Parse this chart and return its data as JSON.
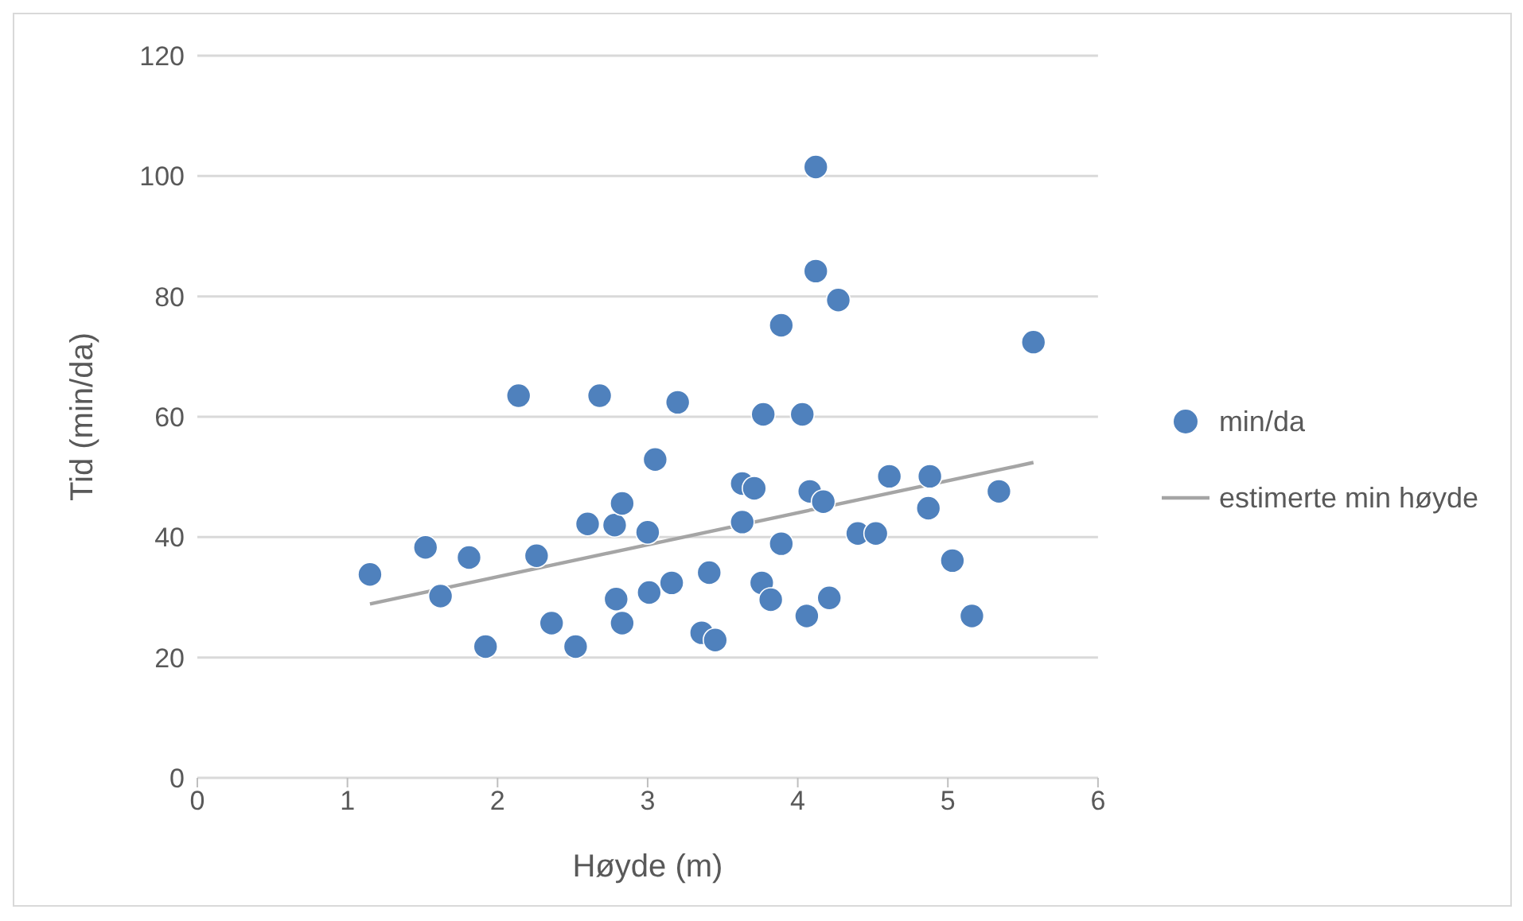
{
  "chart_data": {
    "type": "scatter",
    "xlabel": "Høyde (m)",
    "ylabel": "Tid (min/da)",
    "xlim": [
      0,
      6
    ],
    "xticks": [
      0,
      1,
      2,
      3,
      4,
      5,
      6
    ],
    "ylim": [
      0,
      120
    ],
    "yticks": [
      0,
      20,
      40,
      60,
      80,
      100,
      120
    ],
    "grid": "y",
    "legend": "right",
    "marker": "circle",
    "series": [
      {
        "name": "min/da",
        "color": "#4f81bd",
        "x": [
          1.15,
          1.52,
          1.62,
          1.81,
          1.92,
          2.14,
          2.26,
          2.36,
          2.52,
          2.6,
          2.68,
          2.78,
          2.79,
          2.83,
          2.83,
          3.0,
          3.01,
          3.05,
          3.16,
          3.2,
          3.36,
          3.41,
          3.45,
          3.63,
          3.71,
          3.63,
          3.77,
          3.76,
          3.82,
          3.89,
          3.89,
          4.03,
          4.06,
          4.08,
          4.12,
          4.12,
          4.17,
          4.21,
          4.27,
          4.4,
          4.52,
          4.61,
          4.87,
          4.88,
          5.03,
          5.16,
          5.34,
          5.57
        ],
        "values": [
          33.8,
          38.3,
          30.2,
          36.6,
          21.8,
          63.5,
          36.9,
          25.7,
          21.8,
          42.2,
          63.5,
          42,
          29.7,
          45.6,
          25.7,
          40.8,
          30.8,
          52.9,
          32.4,
          62.4,
          24.1,
          34.1,
          22.9,
          48.9,
          48.1,
          42.5,
          60.4,
          32.4,
          29.6,
          38.9,
          75.2,
          60.4,
          26.9,
          47.6,
          101.5,
          84.2,
          45.9,
          29.9,
          79.4,
          40.6,
          40.6,
          50.1,
          44.8,
          50.1,
          36.1,
          26.9,
          47.6,
          72.4
        ]
      },
      {
        "name": "estimerte min høyde",
        "type": "line",
        "color": "#a5a5a5",
        "x": [
          1.15,
          5.57
        ],
        "values": [
          28.9,
          52.4
        ],
        "marker": "none",
        "line_style": "solid"
      }
    ]
  }
}
